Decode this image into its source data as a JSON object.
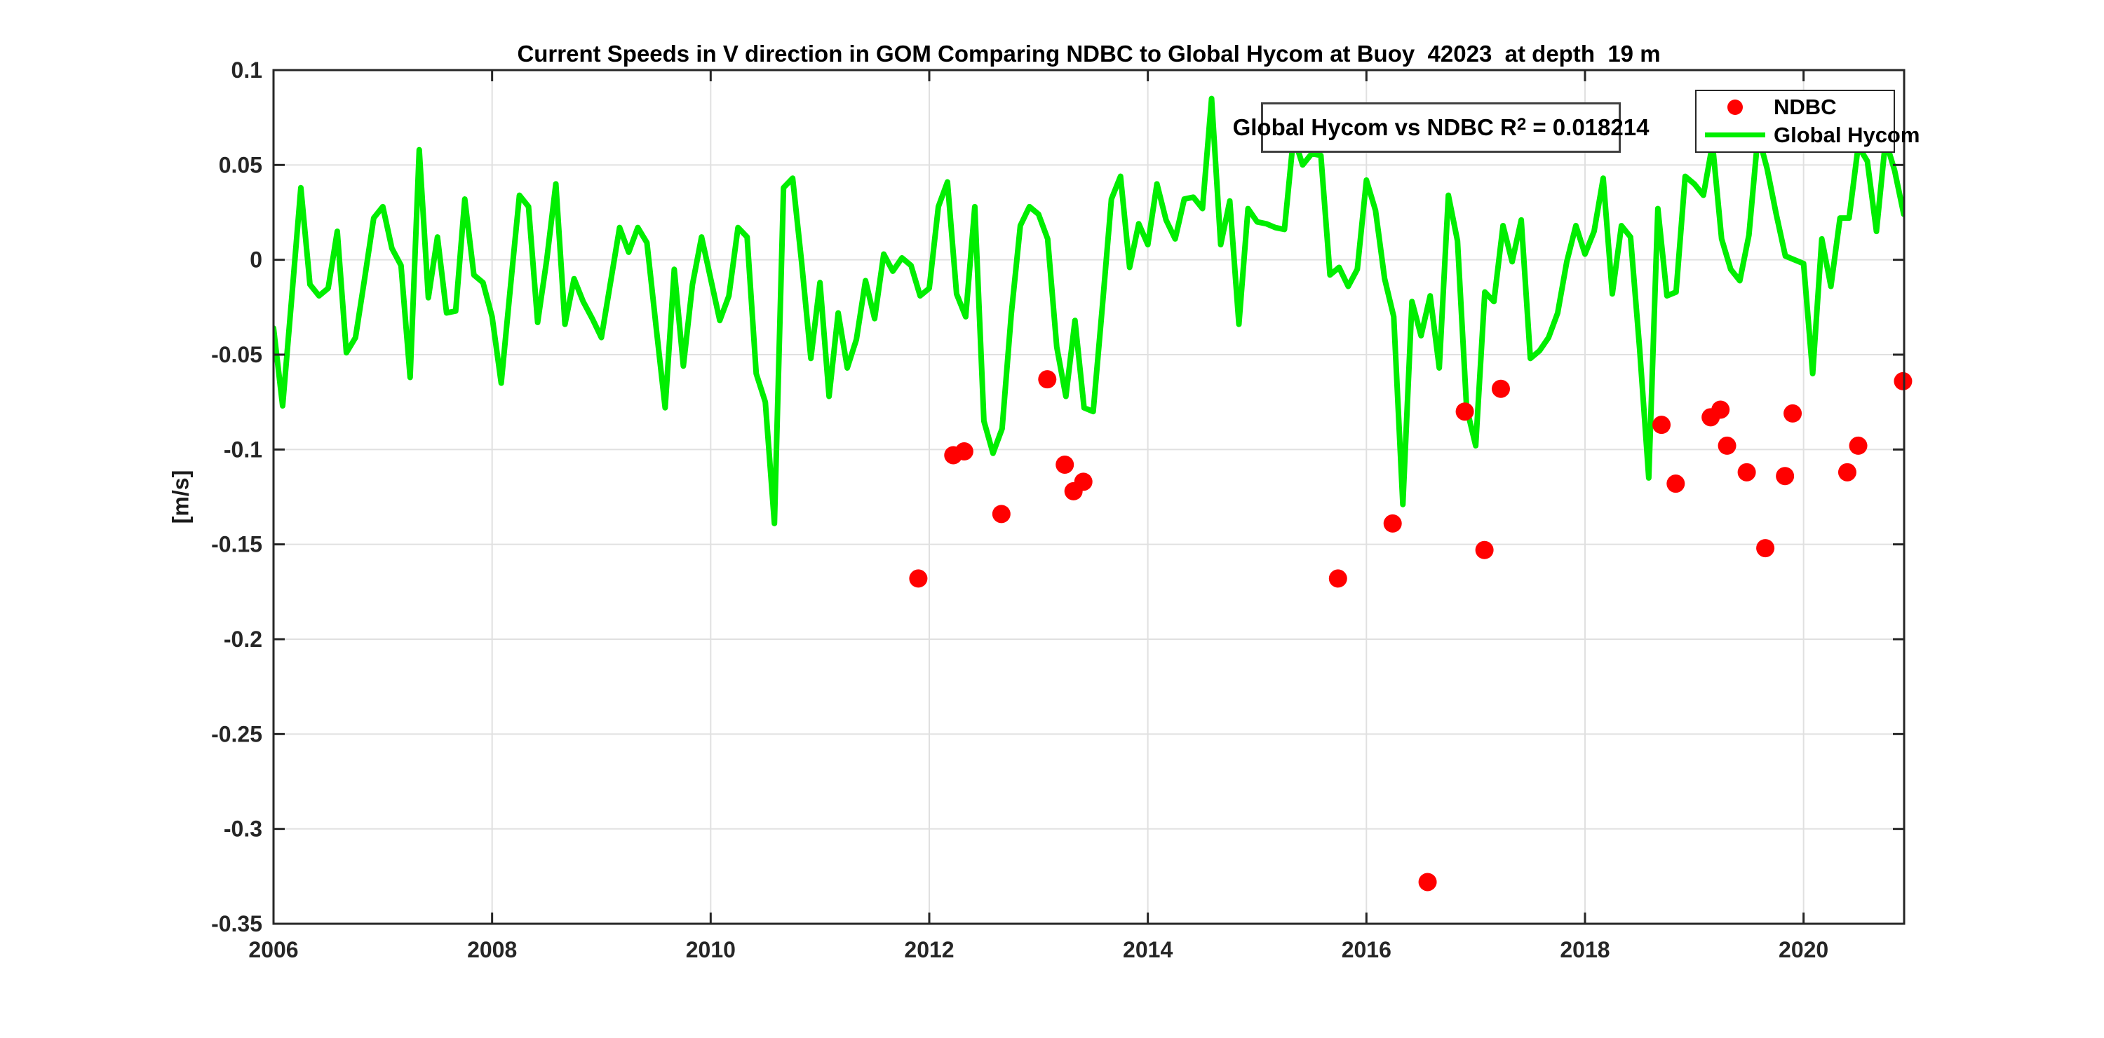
{
  "title": "Current Speeds in V direction in GOM Comparing NDBC to Global Hycom at Buoy  42023  at depth  19 m",
  "ylabel": "[m/s]",
  "annotation": {
    "text_pre": "Global Hycom vs NDBC R",
    "text_sup": "2",
    "text_post": " = 0.018214"
  },
  "legend": {
    "items": [
      {
        "label": "NDBC",
        "marker": "dot",
        "color": "#ff0000"
      },
      {
        "label": "Global Hycom",
        "marker": "line",
        "color": "#00ee00"
      }
    ]
  },
  "colors": {
    "ndbc": "#ff0000",
    "hycom": "#00ee00",
    "axis": "#262626",
    "grid": "#e0e0e0",
    "background": "#ffffff"
  },
  "chart_data": {
    "type": "line+scatter",
    "title": "Current Speeds in V direction in GOM Comparing NDBC to Global Hycom at Buoy  42023  at depth  19 m",
    "xlabel": "",
    "ylabel": "[m/s]",
    "xlim": [
      2006,
      2020.92
    ],
    "ylim": [
      -0.35,
      0.1
    ],
    "x_ticks": [
      2006,
      2008,
      2010,
      2012,
      2014,
      2016,
      2018,
      2020
    ],
    "y_ticks": [
      0.1,
      0.05,
      0,
      -0.05,
      -0.1,
      -0.15,
      -0.2,
      -0.25,
      -0.3,
      -0.35
    ],
    "grid": true,
    "legend_position": "top-right",
    "series": [
      {
        "name": "Global Hycom",
        "type": "line",
        "color": "#00ee00",
        "x_start": 2006.0,
        "x_step": 0.0833333,
        "values": [
          -0.036,
          -0.077,
          -0.02,
          0.038,
          -0.013,
          -0.019,
          -0.015,
          0.015,
          -0.049,
          -0.041,
          -0.01,
          0.022,
          0.028,
          0.006,
          -0.003,
          -0.062,
          0.058,
          -0.02,
          0.012,
          -0.028,
          -0.027,
          0.032,
          -0.008,
          -0.012,
          -0.03,
          -0.065,
          -0.015,
          0.034,
          0.028,
          -0.033,
          0.0,
          0.04,
          -0.034,
          -0.01,
          -0.022,
          -0.031,
          -0.041,
          -0.012,
          0.017,
          0.004,
          0.017,
          0.009,
          -0.035,
          -0.078,
          -0.005,
          -0.056,
          -0.013,
          0.012,
          -0.01,
          -0.032,
          -0.019,
          0.017,
          0.012,
          -0.06,
          -0.075,
          -0.139,
          0.038,
          0.043,
          -0.002,
          -0.052,
          -0.012,
          -0.072,
          -0.028,
          -0.057,
          -0.042,
          -0.011,
          -0.031,
          0.003,
          -0.006,
          0.001,
          -0.003,
          -0.019,
          -0.015,
          0.028,
          0.041,
          -0.018,
          -0.03,
          0.028,
          -0.085,
          -0.102,
          -0.089,
          -0.029,
          0.018,
          0.028,
          0.024,
          0.011,
          -0.046,
          -0.072,
          -0.032,
          -0.078,
          -0.08,
          -0.025,
          0.032,
          0.044,
          -0.004,
          0.019,
          0.008,
          0.04,
          0.021,
          0.011,
          0.032,
          0.033,
          0.027,
          0.085,
          0.008,
          0.031,
          -0.034,
          0.027,
          0.02,
          0.019,
          0.017,
          0.016,
          0.065,
          0.05,
          0.056,
          0.055,
          -0.008,
          -0.004,
          -0.014,
          -0.005,
          0.042,
          0.026,
          -0.01,
          -0.03,
          -0.129,
          -0.022,
          -0.04,
          -0.019,
          -0.057,
          0.034,
          0.01,
          -0.078,
          -0.098,
          -0.017,
          -0.022,
          0.018,
          -0.001,
          0.021,
          -0.052,
          -0.048,
          -0.041,
          -0.028,
          -0.001,
          0.018,
          0.003,
          0.015,
          0.043,
          -0.018,
          0.018,
          0.012,
          -0.047,
          -0.115,
          0.027,
          -0.019,
          -0.017,
          0.044,
          0.04,
          0.034,
          0.061,
          0.011,
          -0.005,
          -0.011,
          0.013,
          0.066,
          0.048,
          0.024,
          0.002,
          0.0,
          -0.002,
          -0.06,
          0.011,
          -0.014,
          0.022,
          0.022,
          0.06,
          0.052,
          0.015,
          0.063,
          0.047,
          0.024
        ]
      },
      {
        "name": "NDBC",
        "type": "scatter",
        "color": "#ff0000",
        "points": [
          [
            2011.9,
            -0.168
          ],
          [
            2012.22,
            -0.103
          ],
          [
            2012.32,
            -0.101
          ],
          [
            2012.66,
            -0.134
          ],
          [
            2013.08,
            -0.063
          ],
          [
            2013.24,
            -0.108
          ],
          [
            2013.32,
            -0.122
          ],
          [
            2013.41,
            -0.117
          ],
          [
            2015.74,
            -0.168
          ],
          [
            2016.24,
            -0.139
          ],
          [
            2016.56,
            -0.328
          ],
          [
            2016.9,
            -0.08
          ],
          [
            2017.08,
            -0.153
          ],
          [
            2017.23,
            -0.068
          ],
          [
            2018.7,
            -0.087
          ],
          [
            2018.83,
            -0.118
          ],
          [
            2019.15,
            -0.083
          ],
          [
            2019.24,
            -0.079
          ],
          [
            2019.3,
            -0.098
          ],
          [
            2019.48,
            -0.112
          ],
          [
            2019.65,
            -0.152
          ],
          [
            2019.83,
            -0.114
          ],
          [
            2019.9,
            -0.081
          ],
          [
            2020.4,
            -0.112
          ],
          [
            2020.5,
            -0.098
          ],
          [
            2020.91,
            -0.064
          ]
        ]
      }
    ]
  }
}
